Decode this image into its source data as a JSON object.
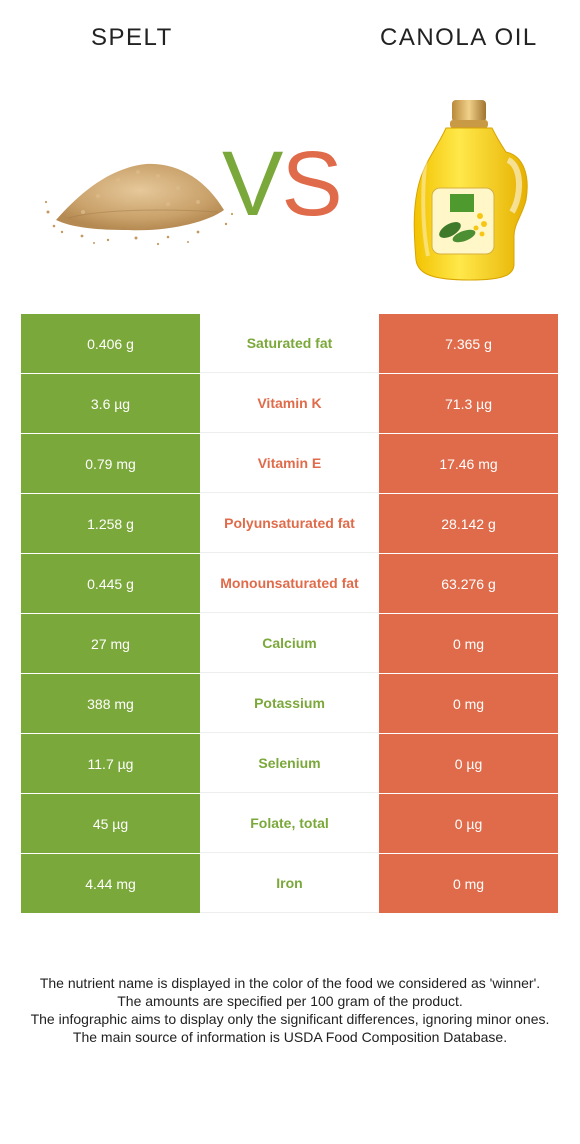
{
  "header": {
    "left_food": "SPELT",
    "right_food": "CANOLA OIL",
    "vs_v": "V",
    "vs_s": "S"
  },
  "colors": {
    "left": "#7ba83a",
    "right": "#e06b4a"
  },
  "rows": [
    {
      "left": "0.406 g",
      "name": "Saturated fat",
      "right": "7.365 g",
      "winner": "left"
    },
    {
      "left": "3.6 µg",
      "name": "Vitamin K",
      "right": "71.3 µg",
      "winner": "right"
    },
    {
      "left": "0.79 mg",
      "name": "Vitamin E",
      "right": "17.46 mg",
      "winner": "right"
    },
    {
      "left": "1.258 g",
      "name": "Polyunsaturated fat",
      "right": "28.142 g",
      "winner": "right"
    },
    {
      "left": "0.445 g",
      "name": "Monounsaturated fat",
      "right": "63.276 g",
      "winner": "right"
    },
    {
      "left": "27 mg",
      "name": "Calcium",
      "right": "0 mg",
      "winner": "left"
    },
    {
      "left": "388 mg",
      "name": "Potassium",
      "right": "0 mg",
      "winner": "left"
    },
    {
      "left": "11.7 µg",
      "name": "Selenium",
      "right": "0 µg",
      "winner": "left"
    },
    {
      "left": "45 µg",
      "name": "Folate, total",
      "right": "0 µg",
      "winner": "left"
    },
    {
      "left": "4.44 mg",
      "name": "Iron",
      "right": "0 mg",
      "winner": "left"
    }
  ],
  "footer": {
    "line1": "The nutrient name is displayed in the color of the food we considered as 'winner'.",
    "line2": "The amounts are specified per 100 gram of the product.",
    "line3": "The infographic aims to display only the significant differences, ignoring minor ones.",
    "line4": "The main source of information is USDA Food Composition Database."
  }
}
